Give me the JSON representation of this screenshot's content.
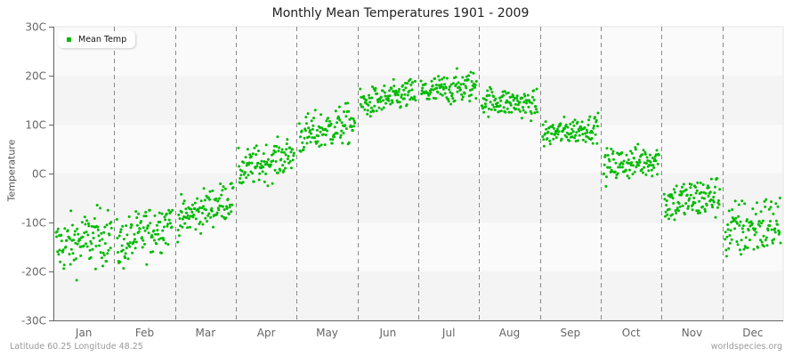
{
  "chart_data": {
    "type": "scatter",
    "title": "Monthly Mean Temperatures 1901 - 2009",
    "xlabel": "",
    "ylabel": "Temperature",
    "ylim": [
      -30,
      30
    ],
    "y_ticks": [
      "30C",
      "20C",
      "10C",
      "0C",
      "-10C",
      "-20C",
      "-30C"
    ],
    "y_tick_values": [
      30,
      20,
      10,
      0,
      -10,
      -20,
      -30
    ],
    "categories": [
      "Jan",
      "Feb",
      "Mar",
      "Apr",
      "May",
      "Jun",
      "Jul",
      "Aug",
      "Sep",
      "Oct",
      "Nov",
      "Dec"
    ],
    "legend": {
      "position": "top-left",
      "entries": [
        "Mean Temp"
      ]
    },
    "grid": {
      "horizontal_bands": true,
      "vertical_month_separators": "dashed"
    },
    "series": [
      {
        "name": "Mean Temp",
        "color": "#00bb00",
        "points_per_month": 109,
        "monthly_summary": [
          {
            "month": "Jan",
            "mean": -14.5,
            "min": -23.5,
            "max": -6.0,
            "start": -15.0,
            "end": -12.5
          },
          {
            "month": "Feb",
            "mean": -13.5,
            "min": -23.0,
            "max": -7.5,
            "start": -15.0,
            "end": -9.5
          },
          {
            "month": "Mar",
            "mean": -7.0,
            "min": -14.0,
            "max": -2.0,
            "start": -9.5,
            "end": -5.0
          },
          {
            "month": "Apr",
            "mean": 2.0,
            "min": -4.0,
            "max": 7.5,
            "start": 0.5,
            "end": 4.0
          },
          {
            "month": "May",
            "mean": 9.0,
            "min": 3.0,
            "max": 15.0,
            "start": 7.5,
            "end": 10.5
          },
          {
            "month": "Jun",
            "mean": 15.0,
            "min": 11.0,
            "max": 20.0,
            "start": 14.0,
            "end": 16.5
          },
          {
            "month": "Jul",
            "mean": 17.0,
            "min": 12.5,
            "max": 22.0,
            "start": 16.5,
            "end": 18.0
          },
          {
            "month": "Aug",
            "mean": 14.5,
            "min": 10.5,
            "max": 19.0,
            "start": 15.0,
            "end": 14.0
          },
          {
            "month": "Sep",
            "mean": 8.5,
            "min": 4.5,
            "max": 12.5,
            "start": 8.0,
            "end": 9.5
          },
          {
            "month": "Oct",
            "mean": 2.0,
            "min": -4.0,
            "max": 6.0,
            "start": 1.5,
            "end": 3.0
          },
          {
            "month": "Nov",
            "mean": -5.5,
            "min": -12.5,
            "max": 0.5,
            "start": -6.0,
            "end": -4.5
          },
          {
            "month": "Dec",
            "mean": -11.5,
            "min": -23.5,
            "max": -5.0,
            "start": -12.0,
            "end": -10.0
          }
        ]
      }
    ]
  },
  "footer": {
    "location": "Latitude 60.25 Longitude 48.25",
    "source": "worldspecies.org"
  },
  "colors": {
    "point": "#00bb00",
    "band_light": "#fafafa",
    "band_dark": "#f4f4f4",
    "axis": "#666666",
    "separator": "#888888"
  }
}
